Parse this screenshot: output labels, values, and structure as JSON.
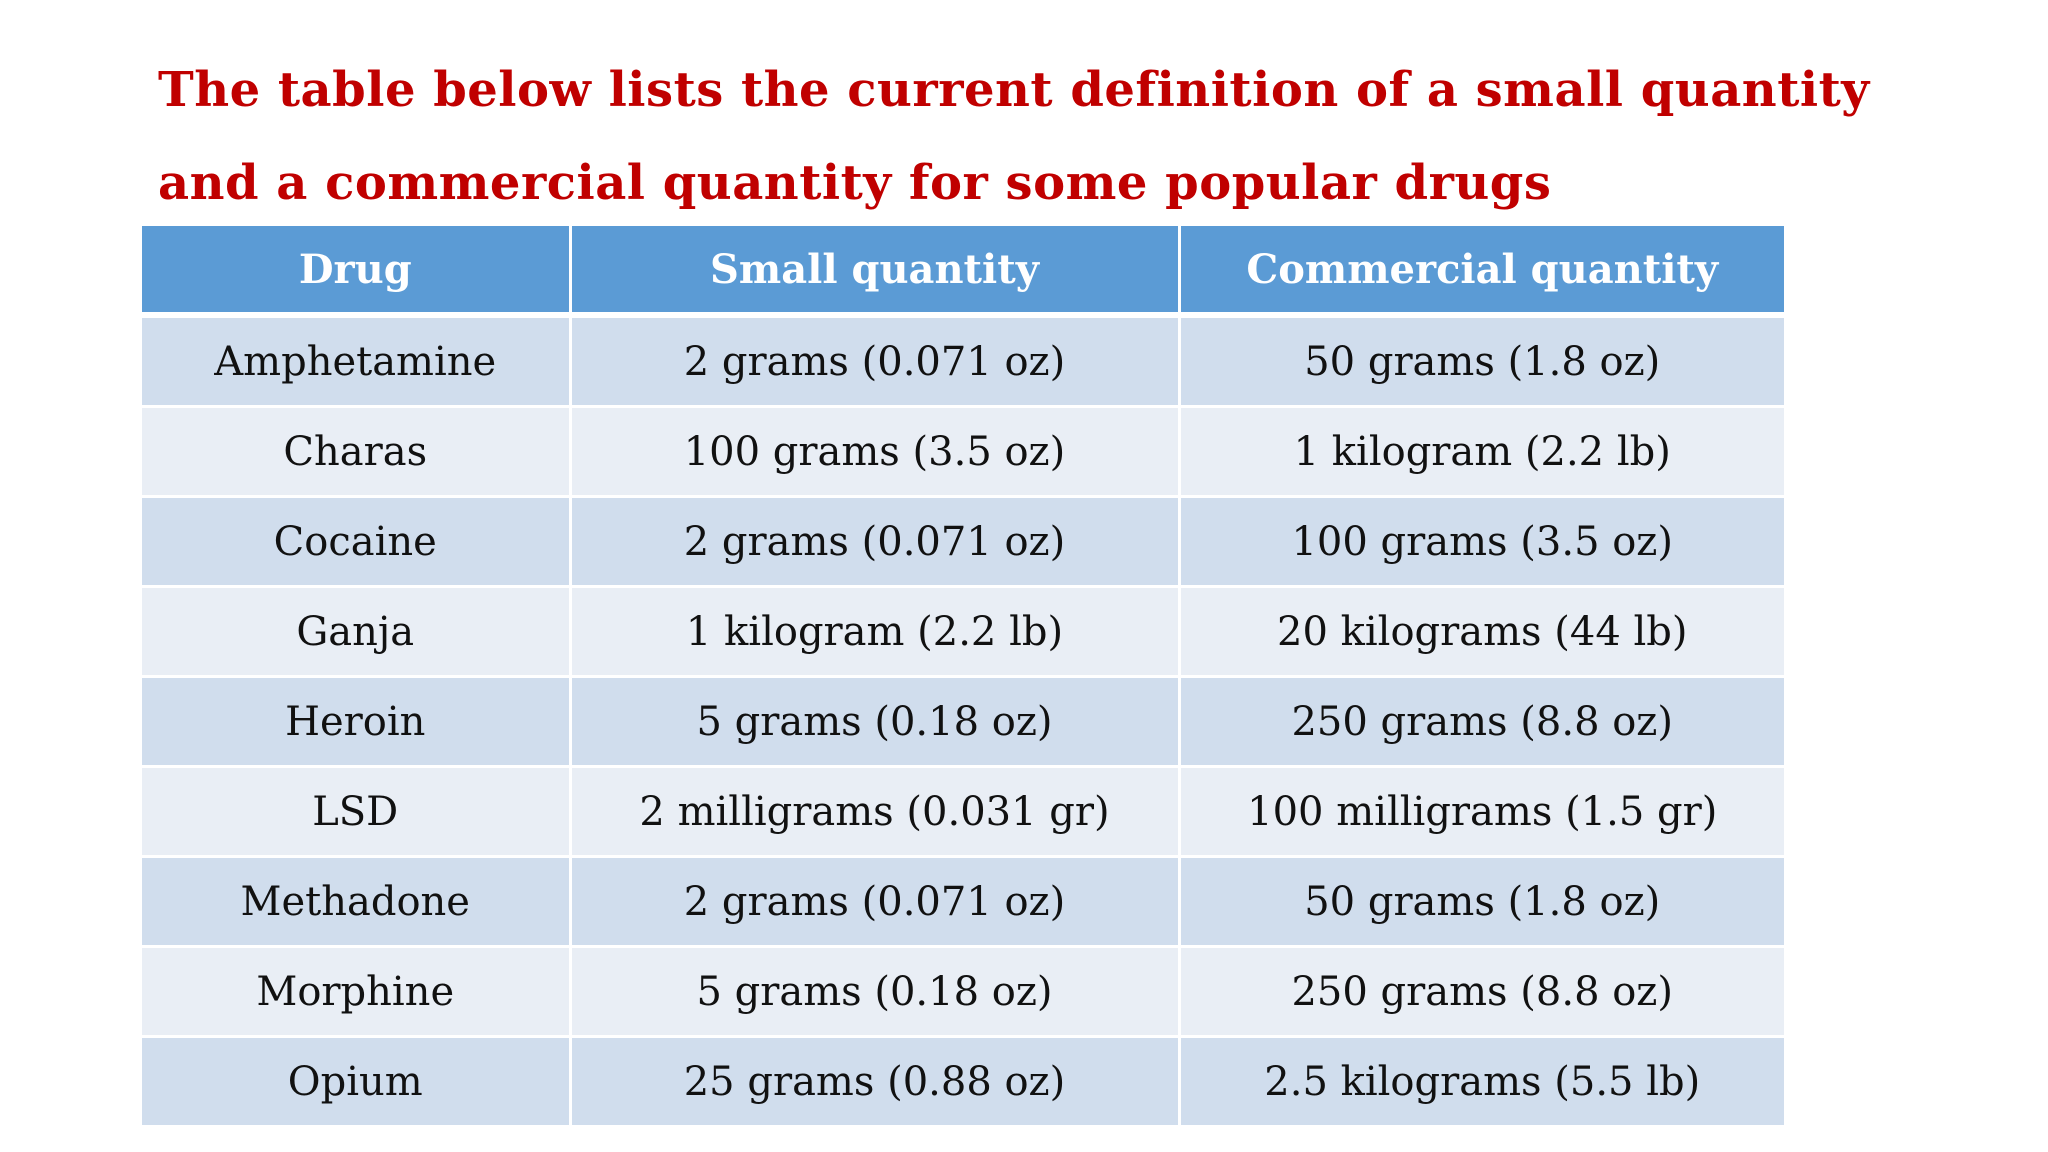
{
  "heading": {
    "line1": "The table below lists the current definition of a small quantity",
    "line2": "and a commercial quantity for some popular drugs"
  },
  "table": {
    "headers": [
      "Drug",
      "Small quantity",
      "Commercial quantity"
    ],
    "rows": [
      [
        "Amphetamine",
        "2 grams (0.071 oz)",
        "50 grams (1.8 oz)"
      ],
      [
        "Charas",
        "100 grams (3.5 oz)",
        "1 kilogram (2.2 lb)"
      ],
      [
        "Cocaine",
        "2 grams (0.071 oz)",
        "100 grams (3.5 oz)"
      ],
      [
        "Ganja",
        "1 kilogram (2.2 lb)",
        "20 kilograms (44 lb)"
      ],
      [
        "Heroin",
        "5 grams (0.18 oz)",
        "250 grams (8.8 oz)"
      ],
      [
        "LSD",
        "2 milligrams (0.031 gr)",
        "100 milligrams (1.5 gr)"
      ],
      [
        "Methadone",
        "2 grams (0.071 oz)",
        "50 grams (1.8 oz)"
      ],
      [
        "Morphine",
        "5 grams (0.18 oz)",
        "250 grams (8.8 oz)"
      ],
      [
        "Opium",
        "25 grams (0.88 oz)",
        "2.5 kilograms (5.5 lb)"
      ]
    ]
  },
  "colors": {
    "heading_text": "#c00000",
    "header_fill": "#5b9bd5",
    "row_fill_dark": "#d0dded",
    "row_fill_light": "#e9eef5"
  }
}
